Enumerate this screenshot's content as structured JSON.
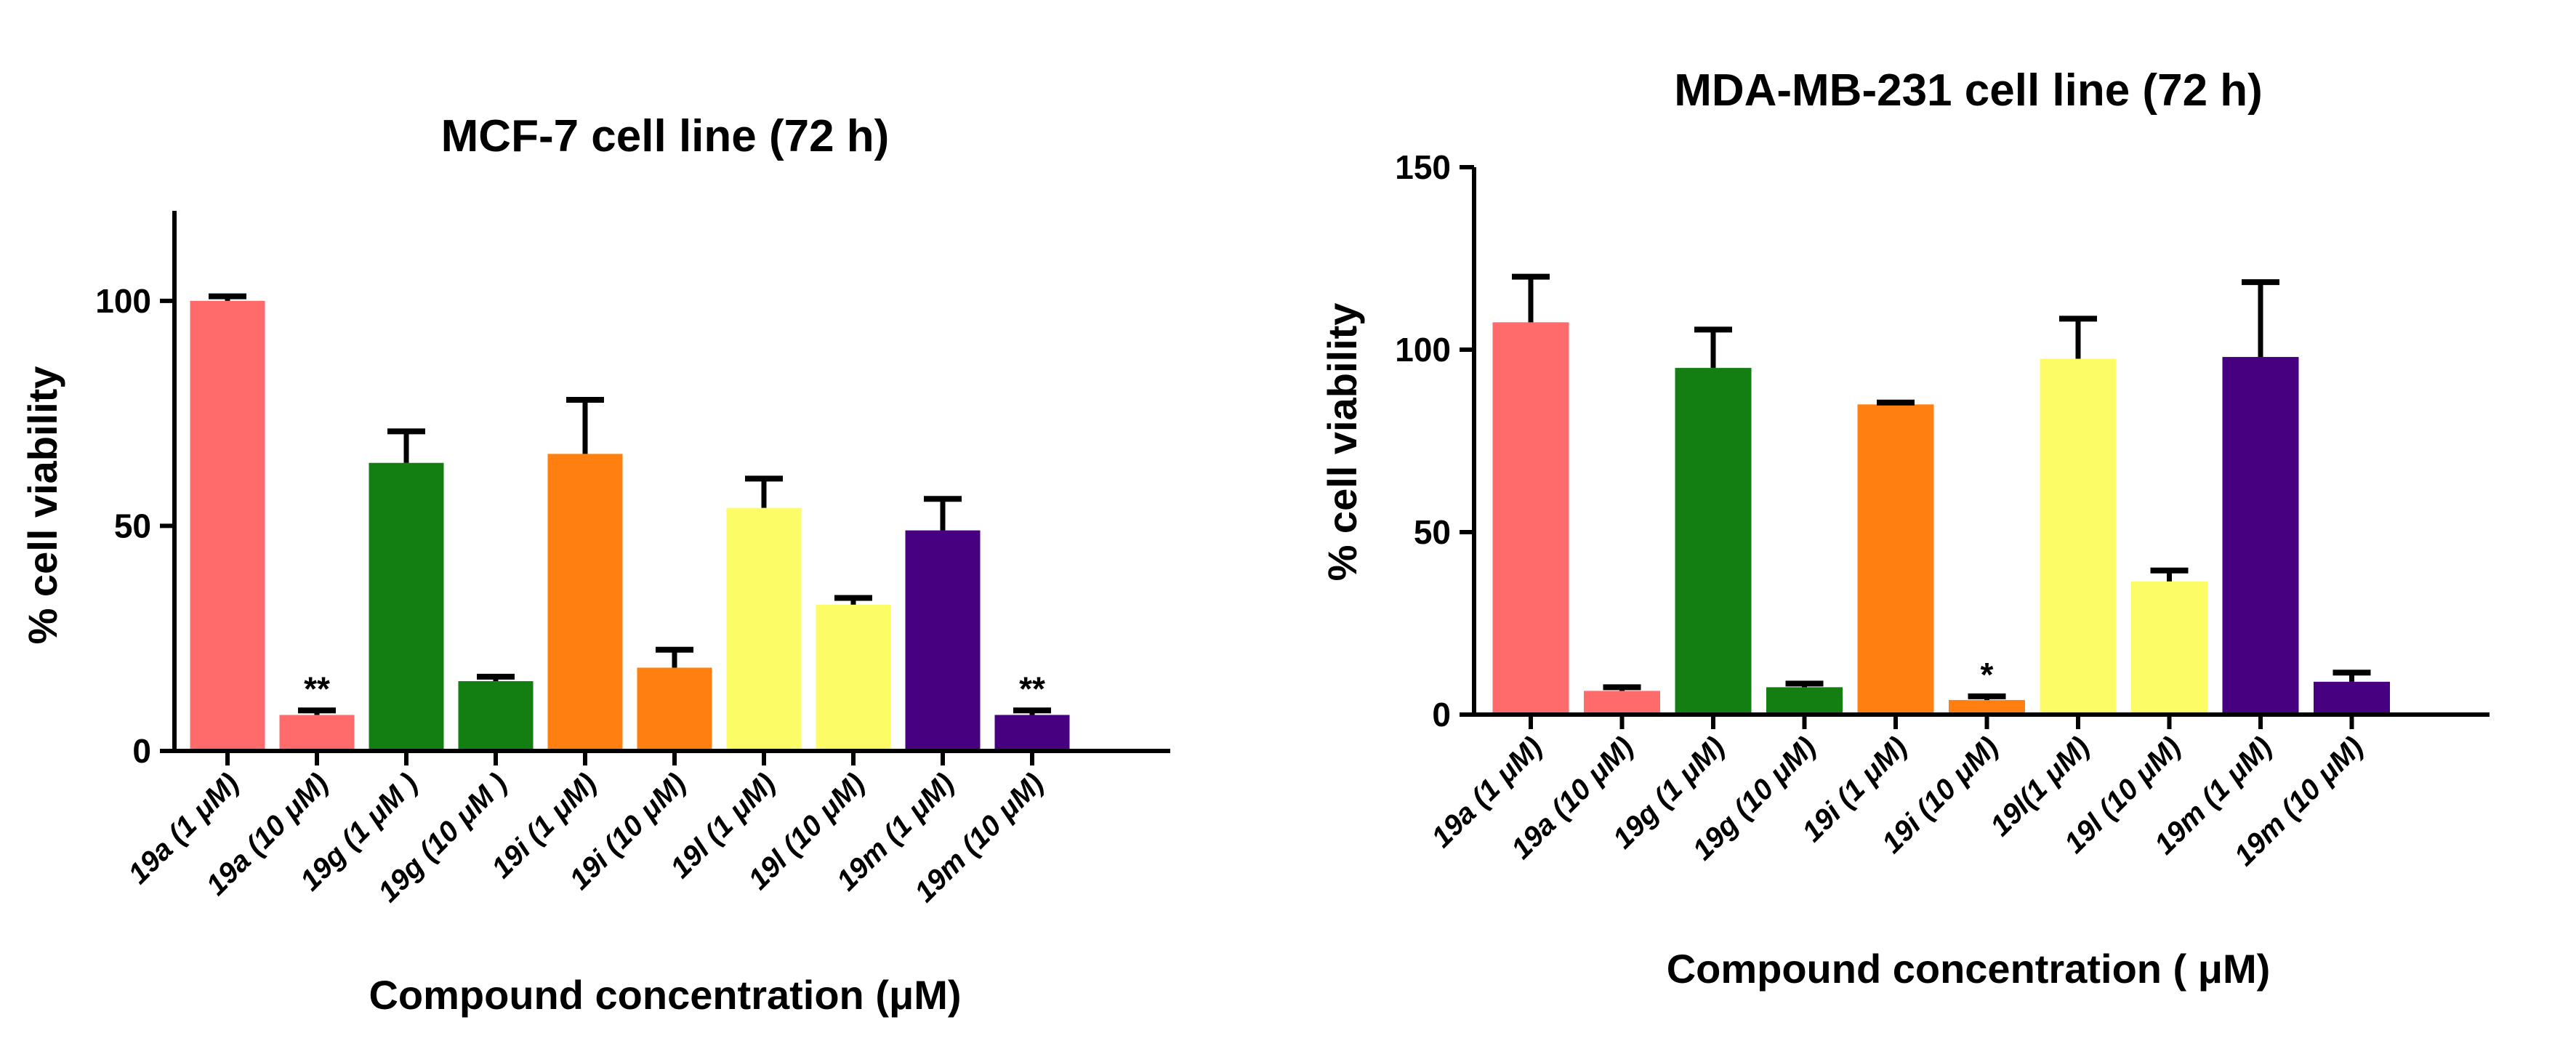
{
  "chart_data": [
    {
      "type": "bar",
      "title": "MCF-7 cell line (72 h)",
      "xlabel": "Compound concentration (μM)",
      "ylabel": "% cell viability",
      "ylim": [
        0,
        120
      ],
      "yticks": [
        0,
        50,
        100
      ],
      "categories": [
        "19a (1 μM)",
        "19a (10 μM)",
        "19g (1  μM )",
        "19g (10  μM )",
        "19i (1  μM)",
        "19i (10  μM)",
        "19l (1  μM)",
        "19l (10  μM)",
        "19m (1  μM)",
        "19m (10  μM)"
      ],
      "values": [
        100,
        8,
        64,
        15.5,
        66,
        18.5,
        54,
        32.5,
        49,
        8
      ],
      "errors": [
        1,
        1,
        7,
        1,
        12,
        4,
        6.5,
        1.5,
        7,
        1
      ],
      "colors": [
        "#FF6B6B",
        "#FF6B6B",
        "#137F13",
        "#137F13",
        "#FF8010",
        "#FF8010",
        "#FCFC66",
        "#FCFC66",
        "#470080",
        "#470080"
      ],
      "annotations": [
        "",
        "**",
        "",
        "",
        "",
        "",
        "",
        "",
        "",
        "**"
      ]
    },
    {
      "type": "bar",
      "title": "MDA-MB-231 cell line (72 h)",
      "xlabel": "Compound concentration ( μM)",
      "ylabel": "% cell viability",
      "ylim": [
        0,
        150
      ],
      "yticks": [
        0,
        50,
        100,
        150
      ],
      "categories": [
        "19a (1 μM)",
        "19a (10 μM)",
        "19g (1  μM)",
        "19g (10  μM)",
        "19i (1 μM)",
        "19i (10  μM)",
        "19l(1  μM)",
        "19l (10  μM)",
        "19m (1  μM)",
        "19m (10  μM)"
      ],
      "values": [
        107.5,
        6.5,
        95,
        7.5,
        85,
        4,
        97.5,
        36.5,
        98,
        9
      ],
      "errors": [
        12.5,
        1,
        10.5,
        1,
        0.5,
        1,
        11,
        3,
        20.5,
        2.5
      ],
      "colors": [
        "#FF6B6B",
        "#FF6B6B",
        "#137F13",
        "#137F13",
        "#FF8010",
        "#FF8010",
        "#FCFC66",
        "#FCFC66",
        "#470080",
        "#470080"
      ],
      "annotations": [
        "",
        "",
        "",
        "",
        "",
        "*",
        "",
        "",
        "",
        ""
      ]
    }
  ]
}
